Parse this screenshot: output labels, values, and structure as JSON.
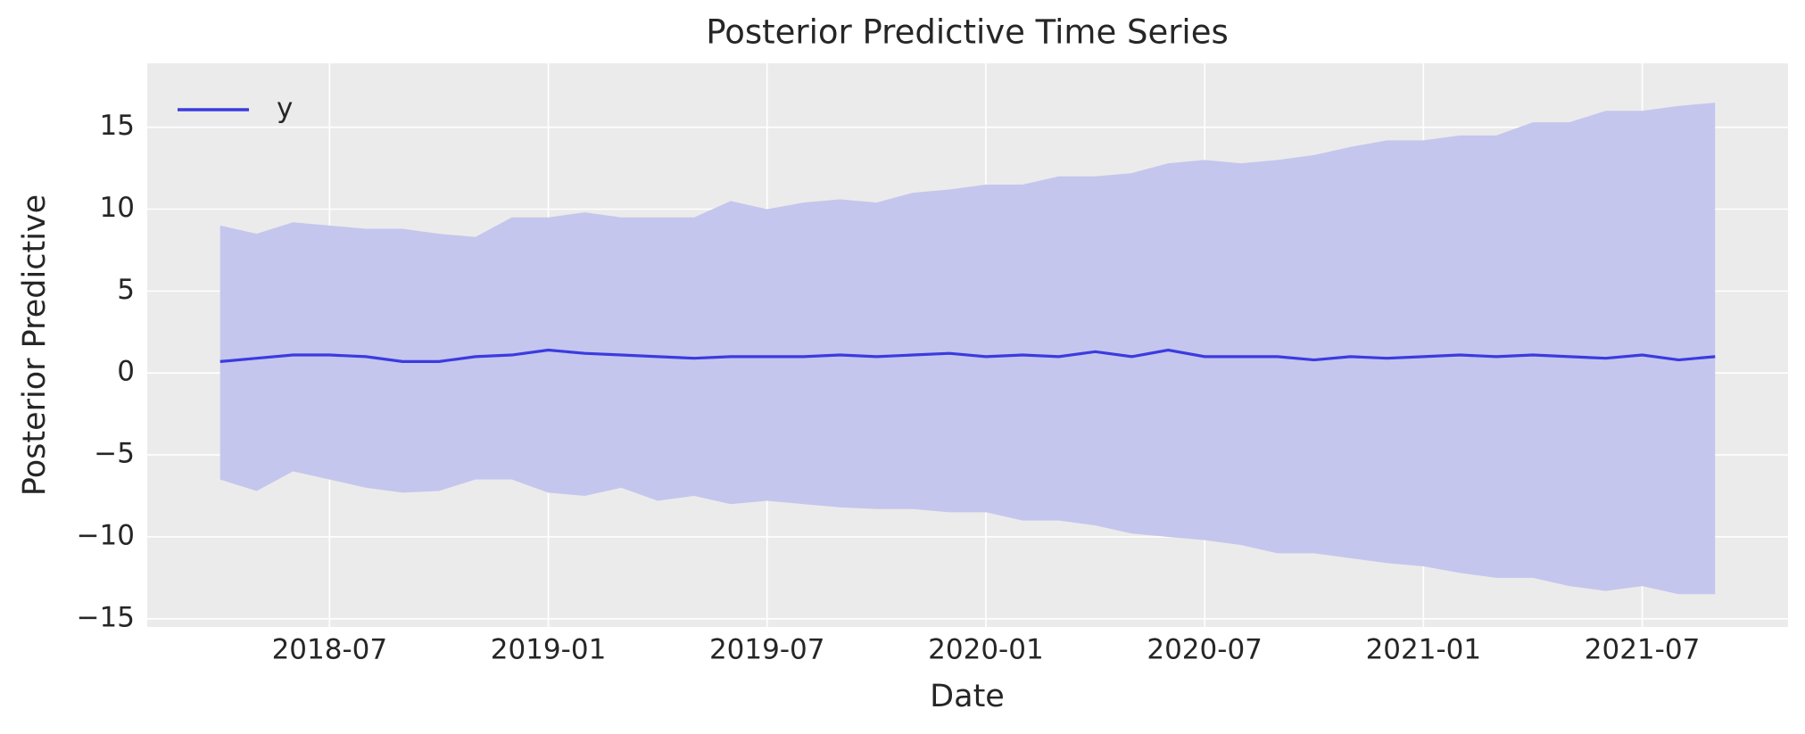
{
  "chart_data": {
    "type": "line",
    "title": "Posterior Predictive Time Series",
    "xlabel": "Date",
    "ylabel": "Posterior Predictive",
    "x": [
      "2018-04",
      "2018-05",
      "2018-06",
      "2018-07",
      "2018-08",
      "2018-09",
      "2018-10",
      "2018-11",
      "2018-12",
      "2019-01",
      "2019-02",
      "2019-03",
      "2019-04",
      "2019-05",
      "2019-06",
      "2019-07",
      "2019-08",
      "2019-09",
      "2019-10",
      "2019-11",
      "2019-12",
      "2020-01",
      "2020-02",
      "2020-03",
      "2020-04",
      "2020-05",
      "2020-06",
      "2020-07",
      "2020-08",
      "2020-09",
      "2020-10",
      "2020-11",
      "2020-12",
      "2021-01",
      "2021-02",
      "2021-03",
      "2021-04",
      "2021-05",
      "2021-06",
      "2021-07",
      "2021-08",
      "2021-09"
    ],
    "series": [
      {
        "name": "y",
        "color": "#3b3be0",
        "values": [
          0.7,
          0.9,
          1.1,
          1.1,
          1.0,
          0.7,
          0.7,
          1.0,
          1.1,
          1.4,
          1.2,
          1.1,
          1.0,
          0.9,
          1.0,
          1.0,
          1.0,
          1.1,
          1.0,
          1.1,
          1.2,
          1.0,
          1.1,
          1.0,
          1.3,
          1.0,
          1.4,
          1.0,
          1.0,
          1.0,
          0.8,
          1.0,
          0.9,
          1.0,
          1.1,
          1.0,
          1.1,
          1.0,
          0.9,
          1.1,
          0.8,
          1.0
        ]
      }
    ],
    "band": {
      "color": "#c4c6ed",
      "upper": [
        9,
        8.5,
        9.2,
        9,
        8.8,
        8.8,
        8.5,
        8.3,
        9.5,
        9.5,
        9.8,
        9.5,
        9.5,
        9.5,
        10.5,
        10,
        10.4,
        10.6,
        10.4,
        11,
        11.2,
        11.5,
        11.5,
        12,
        12,
        12.2,
        12.8,
        13,
        12.8,
        13,
        13.3,
        13.8,
        14.2,
        14.2,
        14.5,
        14.5,
        15.3,
        15.3,
        16,
        16,
        16.3,
        16.5
      ],
      "lower": [
        -6.5,
        -7.2,
        -6,
        -6.5,
        -7,
        -7.3,
        -7.2,
        -6.5,
        -6.5,
        -7.3,
        -7.5,
        -7,
        -7.8,
        -7.5,
        -8,
        -7.8,
        -8,
        -8.2,
        -8.3,
        -8.3,
        -8.5,
        -8.5,
        -9,
        -9,
        -9.3,
        -9.8,
        -10,
        -10.2,
        -10.5,
        -11,
        -11,
        -11.3,
        -11.6,
        -11.8,
        -12.2,
        -12.5,
        -12.5,
        -13,
        -13.3,
        -13,
        -13.5,
        -13.5
      ]
    },
    "xlim": [
      "2018-02",
      "2021-11"
    ],
    "xticks": [
      "2018-07",
      "2019-01",
      "2019-07",
      "2020-01",
      "2020-07",
      "2021-01",
      "2021-07"
    ],
    "ylim": [
      -15.5,
      18.9
    ],
    "yticks": [
      {
        "value": -15,
        "label": "−15"
      },
      {
        "value": -10,
        "label": "−10"
      },
      {
        "value": -5,
        "label": "−5"
      },
      0,
      5,
      10,
      15
    ],
    "grid": true,
    "legend": "upper left",
    "background": "#ebebeb"
  }
}
